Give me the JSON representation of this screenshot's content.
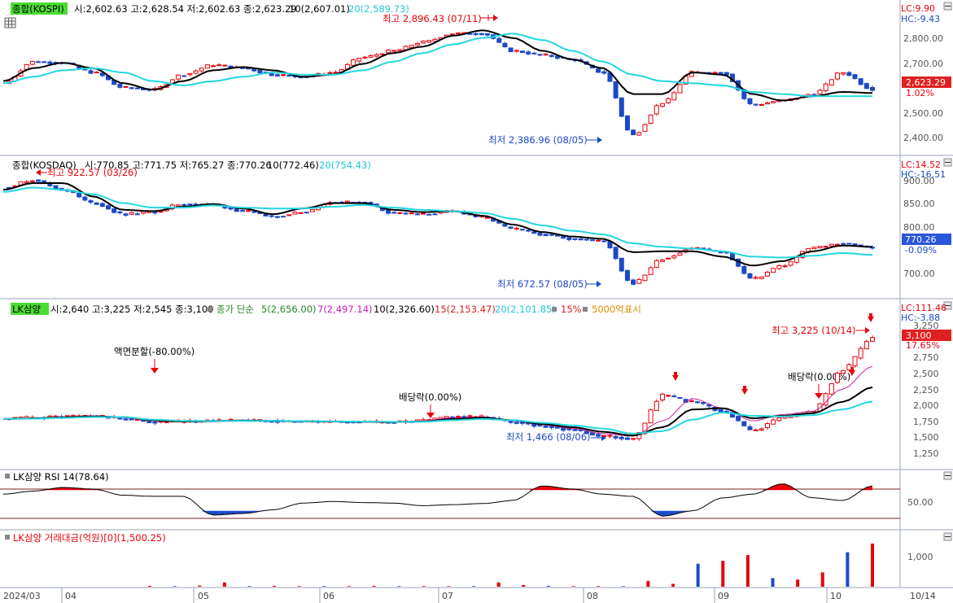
{
  "app": {
    "xaxis_labels": [
      "2024/03",
      "04",
      "05",
      "06",
      "07",
      "08",
      "09",
      "10",
      "10/14"
    ]
  },
  "panes": {
    "kospi": {
      "badge": "종합(KOSPI)",
      "ohlc": "시:2,602.63 고:2,628.54 저:2,602.63 종:2,623.29",
      "ma10": "10(2,607.01)",
      "ma20": "20(2,589.73)",
      "lc": "LC:9.90",
      "hc": "HC:-9.43",
      "yticks": [
        "2,800.00",
        "2,700.00",
        "2,600.00",
        "2,500.00",
        "2,400.00"
      ],
      "last_price": "2,623.29",
      "last_pct": "1.02%",
      "high_label": "최고 2,896.43 (07/11)",
      "low_label": "최저 2,386.96 (08/05)"
    },
    "kosdaq": {
      "badge": "종합(KOSDAQ)",
      "ohlc": "시:770.85 고:771.75 저:765.27 종:770.26",
      "ma10": "10(772.46)",
      "ma20": "20(754.43)",
      "lc": "LC:14.52",
      "hc": "HC:-16.51",
      "yticks": [
        "900.00",
        "850.00",
        "800.00",
        "750.00",
        "700.00"
      ],
      "last_price": "770.26",
      "last_pct": "-0.09%",
      "high_label": "최고 922.57 (03/26)",
      "low_label": "최저 672.57 (08/05)"
    },
    "stock": {
      "badge": "LK삼양",
      "ohlc": "시:2,640 고:3,225 저:2,545 종:3,100",
      "ma_title": "종가 단순",
      "ma5": "5(2,656.00)",
      "ma7": "7(2,497.14)",
      "ma10": "10(2,326.60)",
      "ma15": "15(2,153.47)",
      "ma20": "20(2,101.85)",
      "pct_marker": "15%",
      "amount_marker": "5000억표시",
      "lc": "LC:111.46",
      "hc": "HC:-3.88",
      "yticks": [
        "3,250",
        "3,000",
        "2,750",
        "2,500",
        "2,250",
        "2,000",
        "1,750",
        "1,500",
        "1,250"
      ],
      "last_price": "3,100",
      "last_pct": "17.65%",
      "high_label": "최고 3,225 (10/14)",
      "low_label": "최저 1,466 (08/06)",
      "event_split": "액면분할(-80.00%)",
      "event_div1": "배당락(0.00%)",
      "event_div2": "배당락(0.00%)"
    },
    "rsi": {
      "title": "LK삼양 RSI 14(78.64)",
      "ytick": "50.00"
    },
    "volume": {
      "title": "LK삼양 거래대금(억원)[0](1,500.25)",
      "ytick": "1,000"
    }
  },
  "colors": {
    "up": "#e8000b",
    "down": "#1a49c9",
    "ma_short": "#000000",
    "ma_long": "#23d6e0",
    "ma5": "#c8209c",
    "ma7": "#c020c0",
    "ma15": "#d82020",
    "badge": "#4cdd35",
    "price_box": "#e02020",
    "kosdaq_box": "#2a56d8"
  },
  "chart_data": [
    {
      "type": "candlestick",
      "title": "종합(KOSPI)",
      "x_range": [
        "2024/03",
        "2024/10/14"
      ],
      "ylim": [
        2350,
        2930
      ],
      "series": [
        {
          "name": "10",
          "values": [
            2660,
            2720,
            2745,
            2720,
            2650,
            2620,
            2660,
            2710,
            2725,
            2710,
            2680,
            2690,
            2740,
            2790,
            2820,
            2870,
            2895,
            2860,
            2800,
            2760,
            2720,
            2600,
            2600,
            2700,
            2690,
            2600,
            2570,
            2590,
            2610,
            2605
          ]
        },
        {
          "name": "20",
          "values": [
            2650,
            2680,
            2710,
            2720,
            2700,
            2660,
            2640,
            2660,
            2680,
            2700,
            2690,
            2690,
            2710,
            2750,
            2790,
            2830,
            2860,
            2880,
            2850,
            2800,
            2750,
            2690,
            2660,
            2650,
            2640,
            2610,
            2600,
            2590,
            2590,
            2590
          ]
        }
      ],
      "close": [
        2650,
        2750,
        2745,
        2700,
        2630,
        2620,
        2690,
        2735,
        2720,
        2690,
        2680,
        2700,
        2770,
        2800,
        2840,
        2880,
        2880,
        2800,
        2780,
        2760,
        2700,
        2410,
        2560,
        2700,
        2700,
        2550,
        2570,
        2600,
        2700,
        2623
      ],
      "high": {
        "value": 2896.43,
        "date": "07/11"
      },
      "low": {
        "value": 2386.96,
        "date": "08/05"
      }
    },
    {
      "type": "candlestick",
      "title": "종합(KOSDAQ)",
      "x_range": [
        "2024/03",
        "2024/10/14"
      ],
      "ylim": [
        665,
        935
      ],
      "series": [
        {
          "name": "10",
          "values": [
            900,
            915,
            915,
            885,
            855,
            852,
            862,
            868,
            858,
            845,
            858,
            870,
            870,
            855,
            850,
            852,
            842,
            822,
            805,
            795,
            790,
            760,
            762,
            762,
            750,
            730,
            740,
            762,
            775,
            772
          ]
        },
        {
          "name": "20",
          "values": [
            895,
            905,
            900,
            890,
            870,
            860,
            860,
            865,
            860,
            858,
            858,
            862,
            866,
            860,
            855,
            852,
            848,
            835,
            820,
            808,
            800,
            780,
            772,
            768,
            762,
            750,
            748,
            752,
            758,
            754
          ]
        }
      ],
      "close": [
        905,
        922,
        900,
        870,
        845,
        850,
        868,
        866,
        852,
        840,
        850,
        872,
        872,
        848,
        845,
        852,
        838,
        812,
        800,
        790,
        785,
        690,
        745,
        770,
        760,
        700,
        730,
        770,
        780,
        770
      ],
      "high": {
        "value": 922.57,
        "date": "03/26"
      },
      "low": {
        "value": 672.57,
        "date": "08/05"
      }
    },
    {
      "type": "candlestick",
      "title": "LK삼양",
      "x_range": [
        "2024/03",
        "2024/10/14"
      ],
      "ylim": [
        1100,
        3400
      ],
      "series": [
        {
          "name": "5",
          "values": [
            1830,
            1840,
            1860,
            1880,
            1850,
            1800,
            1790,
            1800,
            1810,
            1800,
            1790,
            1790,
            1780,
            1780,
            1800,
            1850,
            1860,
            1800,
            1740,
            1680,
            1600,
            1560,
            1800,
            2150,
            2000,
            1800,
            1900,
            1950,
            2300,
            2656
          ]
        },
        {
          "name": "10",
          "values": [
            1830,
            1840,
            1855,
            1870,
            1860,
            1810,
            1790,
            1795,
            1805,
            1800,
            1792,
            1790,
            1785,
            1782,
            1790,
            1830,
            1850,
            1810,
            1750,
            1700,
            1630,
            1570,
            1700,
            1980,
            2000,
            1840,
            1880,
            1920,
            2100,
            2327
          ]
        },
        {
          "name": "20",
          "values": [
            1830,
            1835,
            1848,
            1860,
            1860,
            1820,
            1800,
            1798,
            1800,
            1800,
            1795,
            1792,
            1788,
            1785,
            1788,
            1810,
            1830,
            1810,
            1770,
            1730,
            1680,
            1600,
            1640,
            1820,
            1930,
            1880,
            1870,
            1890,
            1980,
            2102
          ]
        }
      ],
      "close": [
        1830,
        1850,
        1870,
        1880,
        1830,
        1780,
        1790,
        1810,
        1810,
        1800,
        1790,
        1790,
        1780,
        1780,
        1800,
        1870,
        1860,
        1780,
        1720,
        1660,
        1560,
        1520,
        2200,
        2100,
        1950,
        1650,
        1850,
        1950,
        2600,
        3100
      ],
      "high": {
        "value": 3225,
        "date": "10/14"
      },
      "low": {
        "value": 1466,
        "date": "08/06"
      },
      "events": [
        {
          "label": "액면분할(-80.00%)"
        },
        {
          "label": "배당락(0.00%)"
        },
        {
          "label": "배당락(0.00%)"
        }
      ]
    },
    {
      "type": "line",
      "title": "LK삼양 RSI 14(78.64)",
      "ylim": [
        0,
        100
      ],
      "upper_band": 70,
      "lower_band": 30,
      "values": [
        62,
        68,
        75,
        72,
        60,
        58,
        58,
        22,
        25,
        32,
        45,
        48,
        46,
        45,
        40,
        42,
        44,
        50,
        78,
        72,
        62,
        58,
        20,
        30,
        55,
        62,
        82,
        55,
        50,
        78
      ]
    },
    {
      "type": "bar",
      "title": "LK삼양 거래대금(억원)[0](1,500.25)",
      "ylim": [
        0,
        1500
      ],
      "values": [
        30,
        20,
        40,
        150,
        20,
        30,
        20,
        20,
        20,
        30,
        20,
        20,
        20,
        20,
        150,
        60,
        30,
        20,
        20,
        20,
        200,
        100,
        800,
        900,
        1100,
        300,
        250,
        500,
        1200,
        1500
      ]
    }
  ]
}
